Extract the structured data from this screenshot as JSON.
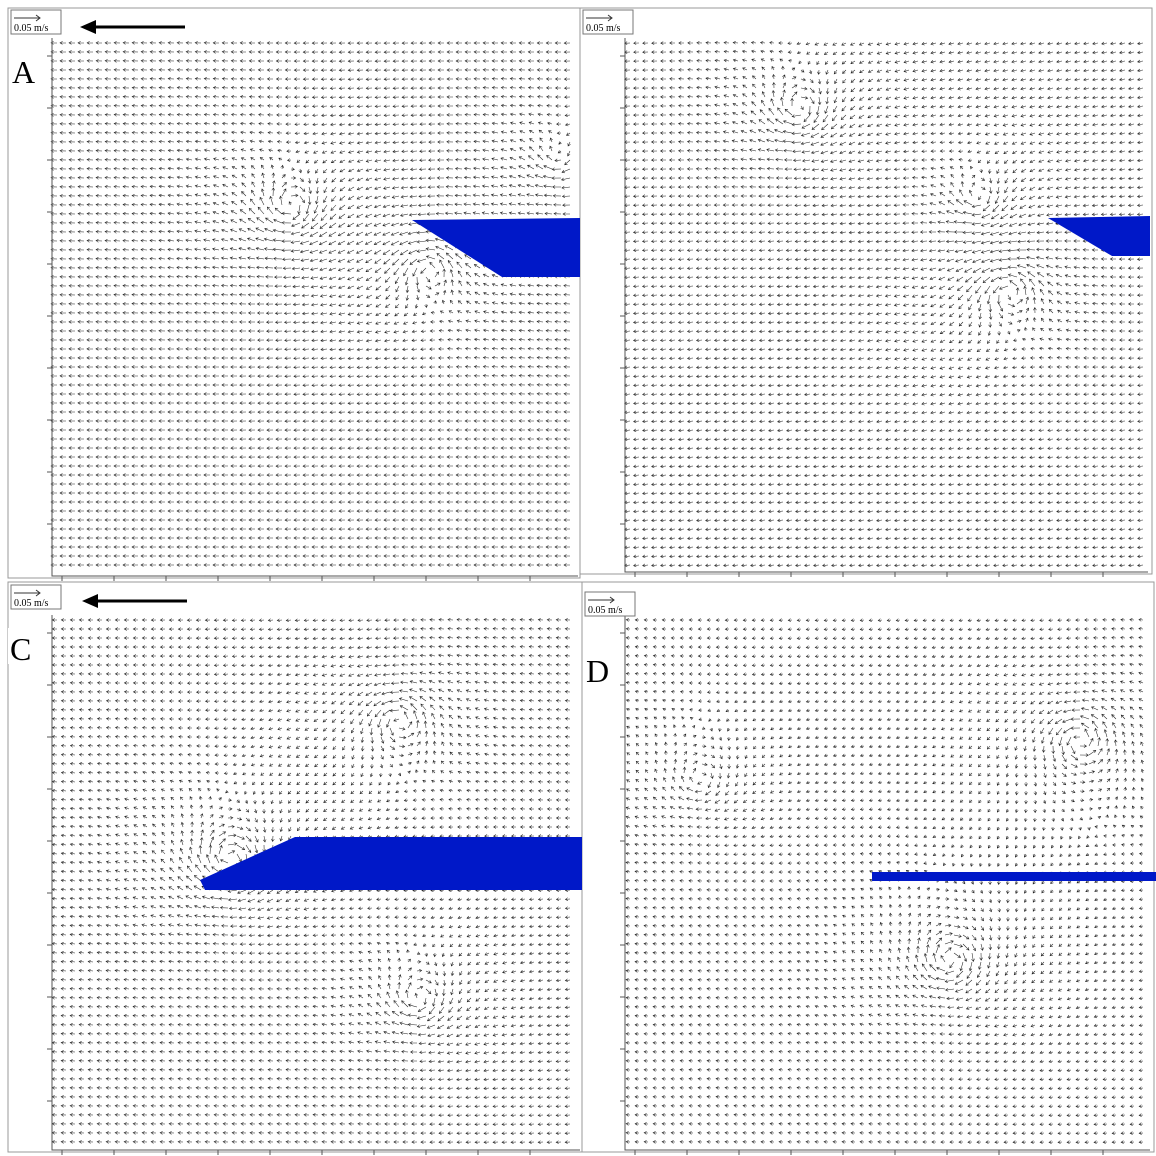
{
  "panels": [
    {
      "letter": "A",
      "scale_label": "0.05 m/s"
    },
    {
      "scale_label": "0.05 m/s"
    },
    {
      "letter": "C",
      "scale_label": "0.05 m/s"
    },
    {
      "letter": "D",
      "scale_label": "0.05 m/s"
    }
  ]
}
